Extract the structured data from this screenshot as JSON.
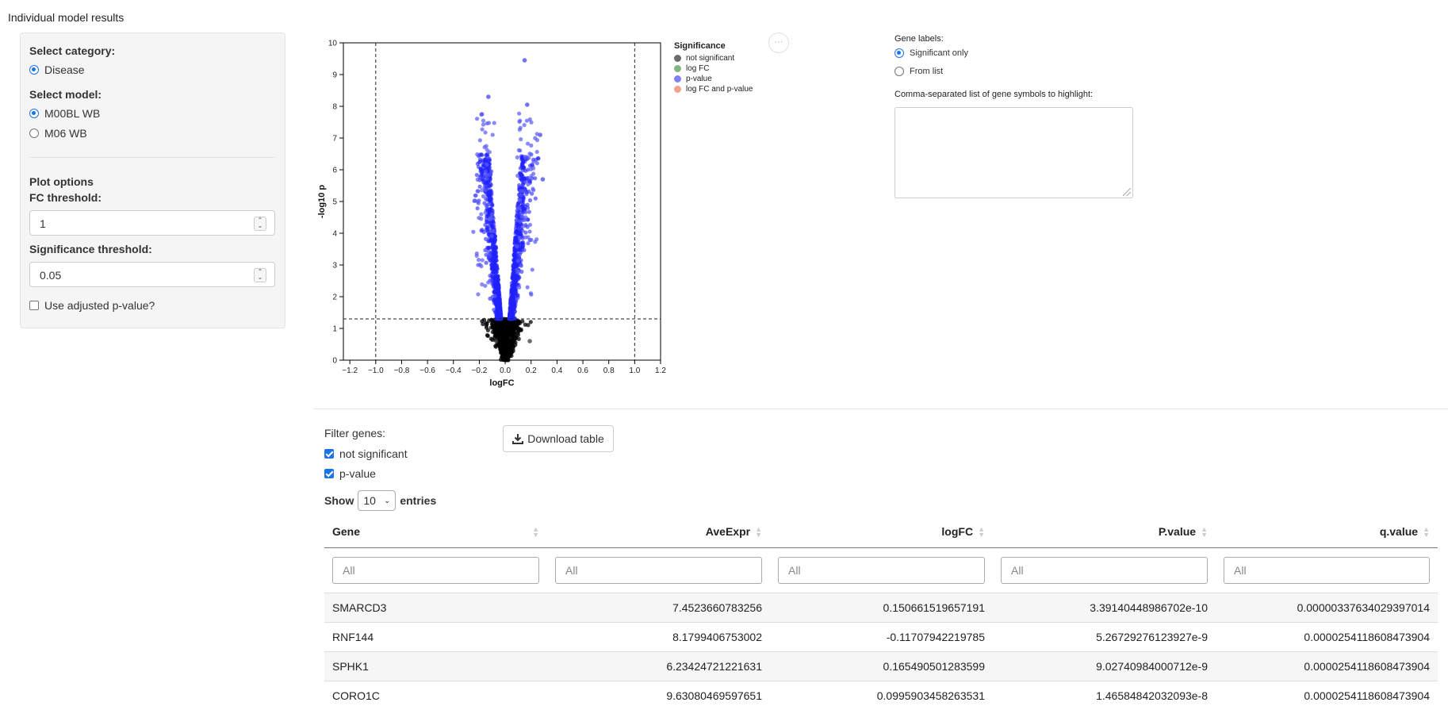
{
  "page_title": "Individual model results",
  "sidebar": {
    "category_label": "Select category:",
    "categories": [
      {
        "label": "Disease",
        "selected": true
      }
    ],
    "model_label": "Select model:",
    "models": [
      {
        "label": "M00BL WB",
        "selected": true
      },
      {
        "label": "M06 WB",
        "selected": false
      }
    ],
    "plot_options_label": "Plot options",
    "fc_label": "FC threshold:",
    "fc_value": "1",
    "sig_label": "Significance threshold:",
    "sig_value": "0.05",
    "adjusted_label": "Use adjusted p-value?",
    "adjusted_checked": false
  },
  "chart_data": {
    "type": "scatter",
    "xlabel": "logFC",
    "ylabel": "-log10 p",
    "xlim": [
      -1.25,
      1.2
    ],
    "ylim": [
      0,
      10
    ],
    "xticks": [
      "−1.2",
      "−1.0",
      "−0.8",
      "−0.6",
      "−0.4",
      "−0.2",
      "0.0",
      "0.2",
      "0.4",
      "0.6",
      "0.8",
      "1.0",
      "1.2"
    ],
    "yticks": [
      "0",
      "1",
      "2",
      "3",
      "4",
      "5",
      "6",
      "7",
      "8",
      "9",
      "10"
    ],
    "fc_threshold_lines": [
      -1.0,
      1.0
    ],
    "p_threshold_line": 1.3,
    "legend_title": "Significance",
    "legend_position": "right",
    "series": [
      {
        "name": "not significant",
        "color": "#555555",
        "description": "points with -log10 p below 1.3, clustered near logFC 0"
      },
      {
        "name": "log FC",
        "color": "#7fb77e"
      },
      {
        "name": "p-value",
        "color": "#2222ff",
        "description": "points above 1.3, spread across logFC -0.25 to 0.3"
      },
      {
        "name": "log FC and p-value",
        "color": "#f2a28f"
      }
    ],
    "highlighted_points": [
      {
        "x": 0.15,
        "y": 9.45
      },
      {
        "x": -0.13,
        "y": 8.3
      },
      {
        "x": 0.17,
        "y": 8.05
      },
      {
        "x": -0.18,
        "y": 7.75
      },
      {
        "x": 0.27,
        "y": 7.1
      },
      {
        "x": 0.29,
        "y": 5.7
      },
      {
        "x": 0.19,
        "y": 0.6
      }
    ]
  },
  "more_button": "···",
  "gene_labels": {
    "title": "Gene labels:",
    "options": [
      {
        "label": "Significant only",
        "selected": true
      },
      {
        "label": "From list",
        "selected": false
      }
    ],
    "textarea_label": "Comma-separated list of gene symbols to highlight:",
    "textarea_value": ""
  },
  "filter": {
    "title": "Filter genes:",
    "options": [
      {
        "label": "not significant",
        "checked": true
      },
      {
        "label": "p-value",
        "checked": true
      }
    ]
  },
  "download_label": "Download table",
  "show_entries": {
    "prefix": "Show",
    "value": "10",
    "suffix": "entries"
  },
  "table": {
    "columns": [
      "Gene",
      "AveExpr",
      "logFC",
      "P.value",
      "q.value"
    ],
    "filter_placeholder": "All",
    "rows": [
      [
        "SMARCD3",
        "7.4523660783256",
        "0.150661519657191",
        "3.39140448986702e-10",
        "0.00000337634029397014"
      ],
      [
        "RNF144",
        "8.1799406753002",
        "-0.11707942219785",
        "5.26729276123927e-9",
        "0.0000254118608473904"
      ],
      [
        "SPHK1",
        "6.23424721221631",
        "0.165490501283599",
        "9.02740984000712e-9",
        "0.0000254118608473904"
      ],
      [
        "CORO1C",
        "9.63080469597651",
        "0.0995903458263531",
        "1.46584842032093e-8",
        "0.0000254118608473904"
      ]
    ]
  }
}
